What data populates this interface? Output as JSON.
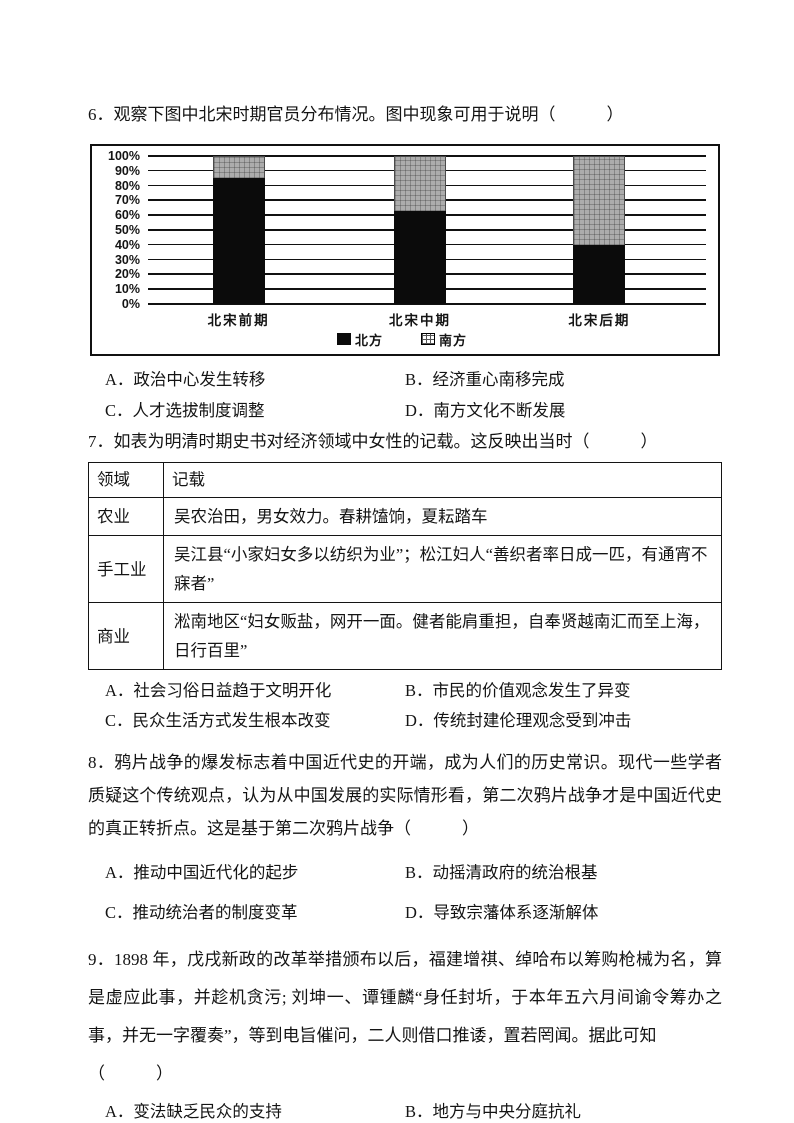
{
  "colors": {
    "text": "#141414",
    "north_bar": "#0b0b0b",
    "south_bar": "#acacac",
    "table_border": "#141414"
  },
  "chart_data": {
    "type": "bar",
    "stacked": true,
    "title": "北宋时期官员分布情况",
    "categories": [
      "北宋前期",
      "北宋中期",
      "北宋后期"
    ],
    "series": [
      {
        "name": "北方",
        "values": [
          85,
          63,
          40
        ],
        "color": "#0b0b0b",
        "pattern": "solid"
      },
      {
        "name": "南方",
        "values": [
          15,
          37,
          60
        ],
        "color": "#acacac",
        "pattern": "grid"
      }
    ],
    "xlabel": "",
    "ylabel": "",
    "ylim": [
      0,
      100
    ],
    "yticks": [
      "100%",
      "90%",
      "80%",
      "70%",
      "60%",
      "50%",
      "40%",
      "30%",
      "20%",
      "10%",
      "0%"
    ],
    "grid": true,
    "legend_position": "bottom"
  },
  "questions": {
    "q6": {
      "stem": "6．观察下图中北宋时期官员分布情况。图中现象可用于说明（　　　）",
      "options": {
        "a": "A．政治中心发生转移",
        "b": "B．经济重心南移完成",
        "c": "C．人才选拔制度调整",
        "d": "D．南方文化不断发展"
      }
    },
    "q7": {
      "stem": "7．如表为明清时期史书对经济领域中女性的记载。这反映出当时（　　　）",
      "table": {
        "headers": [
          "领域",
          "记载"
        ],
        "rows": [
          [
            "农业",
            "吴农治田，男女效力。春耕馌饷，夏耘踏车"
          ],
          [
            "手工业",
            "吴江县“小家妇女多以纺织为业”；松江妇人“善织者率日成一匹，有通宵不寐者”"
          ],
          [
            "商业",
            "淞南地区“妇女贩盐，网开一面。健者能肩重担，自奉贤越南汇而至上海，日行百里”"
          ]
        ]
      },
      "options": {
        "a": "A．社会习俗日益趋于文明开化",
        "b": "B．市民的价值观念发生了异变",
        "c": "C．民众生活方式发生根本改变",
        "d": "D．传统封建伦理观念受到冲击"
      }
    },
    "q8": {
      "stem": "8．鸦片战争的爆发标志着中国近代史的开端，成为人们的历史常识。现代一些学者质疑这个传统观点，认为从中国发展的实际情形看，第二次鸦片战争才是中国近代史的真正转折点。这是基于第二次鸦片战争（　　　）",
      "options": {
        "a": "A．推动中国近代化的起步",
        "b": "B．动摇清政府的统治根基",
        "c": "C．推动统治者的制度变革",
        "d": "D．导致宗藩体系逐渐解体"
      }
    },
    "q9": {
      "stem": "9．1898 年，戊戌新政的改革举措颁布以后，福建增祺、绰哈布以筹购枪械为名，算是虚应此事，并趁机贪污; 刘坤一、谭锺麟“身任封圻，于本年五六月间谕令筹办之事，并无一字覆奏”，等到电旨催问，二人则借口推诿，置若罔闻。据此可知",
      "paren": "（　　　）",
      "options": {
        "a": "A．变法缺乏民众的支持",
        "b": "B．地方与中央分庭抗礼"
      }
    }
  }
}
